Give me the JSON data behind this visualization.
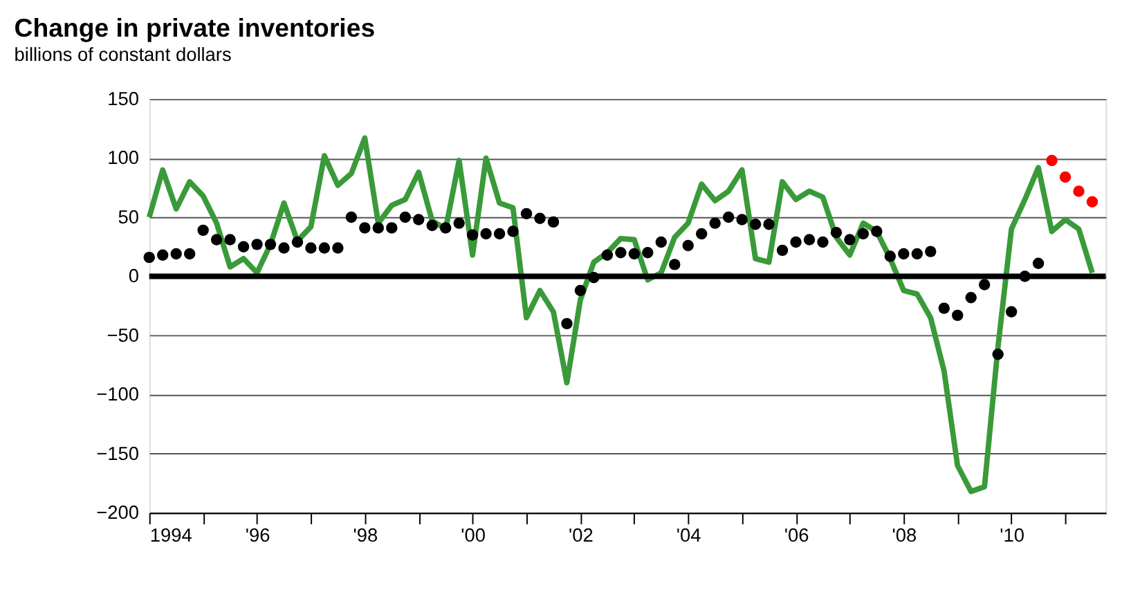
{
  "chart_data": {
    "type": "line",
    "title": "Change in private inventories",
    "subtitle": "billions of constant dollars",
    "xlim": [
      1994,
      2011.75
    ],
    "xticks": [
      {
        "value": 1994,
        "label": "1994"
      },
      {
        "value": 1995,
        "label": null
      },
      {
        "value": 1996,
        "label": "'96"
      },
      {
        "value": 1997,
        "label": null
      },
      {
        "value": 1998,
        "label": "'98"
      },
      {
        "value": 1999,
        "label": null
      },
      {
        "value": 2000,
        "label": "'00"
      },
      {
        "value": 2001,
        "label": null
      },
      {
        "value": 2002,
        "label": "'02"
      },
      {
        "value": 2003,
        "label": null
      },
      {
        "value": 2004,
        "label": "'04"
      },
      {
        "value": 2005,
        "label": null
      },
      {
        "value": 2006,
        "label": "'06"
      },
      {
        "value": 2007,
        "label": null
      },
      {
        "value": 2008,
        "label": "'08"
      },
      {
        "value": 2009,
        "label": null
      },
      {
        "value": 2010,
        "label": "'10"
      },
      {
        "value": 2011,
        "label": null
      }
    ],
    "ylim": [
      -200,
      150
    ],
    "yticks": [
      -200,
      -150,
      -100,
      -50,
      0,
      50,
      100,
      150
    ],
    "grid": "y",
    "ref_lines": [
      {
        "axis": "y",
        "value": 0,
        "color": "#000000"
      }
    ],
    "series": [
      {
        "type": "line",
        "color": "#3a9a3a",
        "line_style": "solid",
        "marker": "none",
        "x": [
          1994.0,
          1994.25,
          1994.5,
          1994.75,
          1995.0,
          1995.25,
          1995.5,
          1995.75,
          1996.0,
          1996.25,
          1996.5,
          1996.75,
          1997.0,
          1997.25,
          1997.5,
          1997.75,
          1998.0,
          1998.25,
          1998.5,
          1998.75,
          1999.0,
          1999.25,
          1999.5,
          1999.75,
          2000.0,
          2000.25,
          2000.5,
          2000.75,
          2001.0,
          2001.25,
          2001.5,
          2001.75,
          2002.0,
          2002.25,
          2002.5,
          2002.75,
          2003.0,
          2003.25,
          2003.5,
          2003.75,
          2004.0,
          2004.25,
          2004.5,
          2004.75,
          2005.0,
          2005.25,
          2005.5,
          2005.75,
          2006.0,
          2006.25,
          2006.5,
          2006.75,
          2007.0,
          2007.25,
          2007.5,
          2007.75,
          2008.0,
          2008.25,
          2008.5,
          2008.75,
          2009.0,
          2009.25,
          2009.5,
          2009.75,
          2010.0,
          2010.25,
          2010.5,
          2010.75,
          2011.0,
          2011.25,
          2011.5
        ],
        "values": [
          50,
          90,
          57,
          80,
          68,
          45,
          8,
          15,
          3,
          27,
          62,
          30,
          42,
          102,
          77,
          87,
          117,
          45,
          60,
          65,
          88,
          47,
          40,
          98,
          18,
          100,
          62,
          58,
          -35,
          -12,
          -30,
          -90,
          -20,
          12,
          20,
          32,
          31,
          -3,
          3,
          33,
          45,
          78,
          64,
          72,
          90,
          15,
          12,
          80,
          65,
          72,
          67,
          33,
          18,
          45,
          38,
          15,
          -12,
          -15,
          -35,
          -80,
          -160,
          -182,
          -178,
          -60,
          40,
          65,
          92,
          38,
          48,
          40,
          3
        ]
      },
      {
        "type": "scatter",
        "color": "#000000",
        "marker": "circle",
        "x": [
          1994.0,
          1994.25,
          1994.5,
          1994.75,
          1995.0,
          1995.25,
          1995.5,
          1995.75,
          1996.0,
          1996.25,
          1996.5,
          1996.75,
          1997.0,
          1997.25,
          1997.5,
          1997.75,
          1998.0,
          1998.25,
          1998.5,
          1998.75,
          1999.0,
          1999.25,
          1999.5,
          1999.75,
          2000.0,
          2000.25,
          2000.5,
          2000.75,
          2001.0,
          2001.25,
          2001.5,
          2001.75,
          2002.0,
          2002.25,
          2002.5,
          2002.75,
          2003.0,
          2003.25,
          2003.5,
          2003.75,
          2004.0,
          2004.25,
          2004.5,
          2004.75,
          2005.0,
          2005.25,
          2005.5,
          2005.75,
          2006.0,
          2006.25,
          2006.5,
          2006.75,
          2007.0,
          2007.25,
          2007.5,
          2007.75,
          2008.0,
          2008.25,
          2008.5,
          2008.75,
          2009.0,
          2009.25,
          2009.5,
          2009.75,
          2010.0,
          2010.25,
          2010.5
        ],
        "values": [
          16,
          18,
          19,
          19,
          39,
          31,
          31,
          25,
          27,
          27,
          24,
          29,
          24,
          24,
          24,
          50,
          41,
          41,
          41,
          50,
          48,
          43,
          41,
          45,
          35,
          36,
          36,
          38,
          53,
          49,
          46,
          -40,
          -12,
          -1,
          18,
          20,
          19,
          20,
          29,
          10,
          26,
          36,
          45,
          50,
          48,
          44,
          44,
          22,
          29,
          31,
          29,
          37,
          31,
          36,
          38,
          17,
          19,
          19,
          21,
          -27,
          -33,
          -18,
          -7,
          -66,
          -30,
          0,
          11
        ]
      },
      {
        "type": "scatter",
        "color": "#ff0000",
        "marker": "circle",
        "x": [
          2010.75,
          2011.0,
          2011.25,
          2011.5
        ],
        "values": [
          98,
          84,
          72,
          63
        ]
      }
    ]
  }
}
